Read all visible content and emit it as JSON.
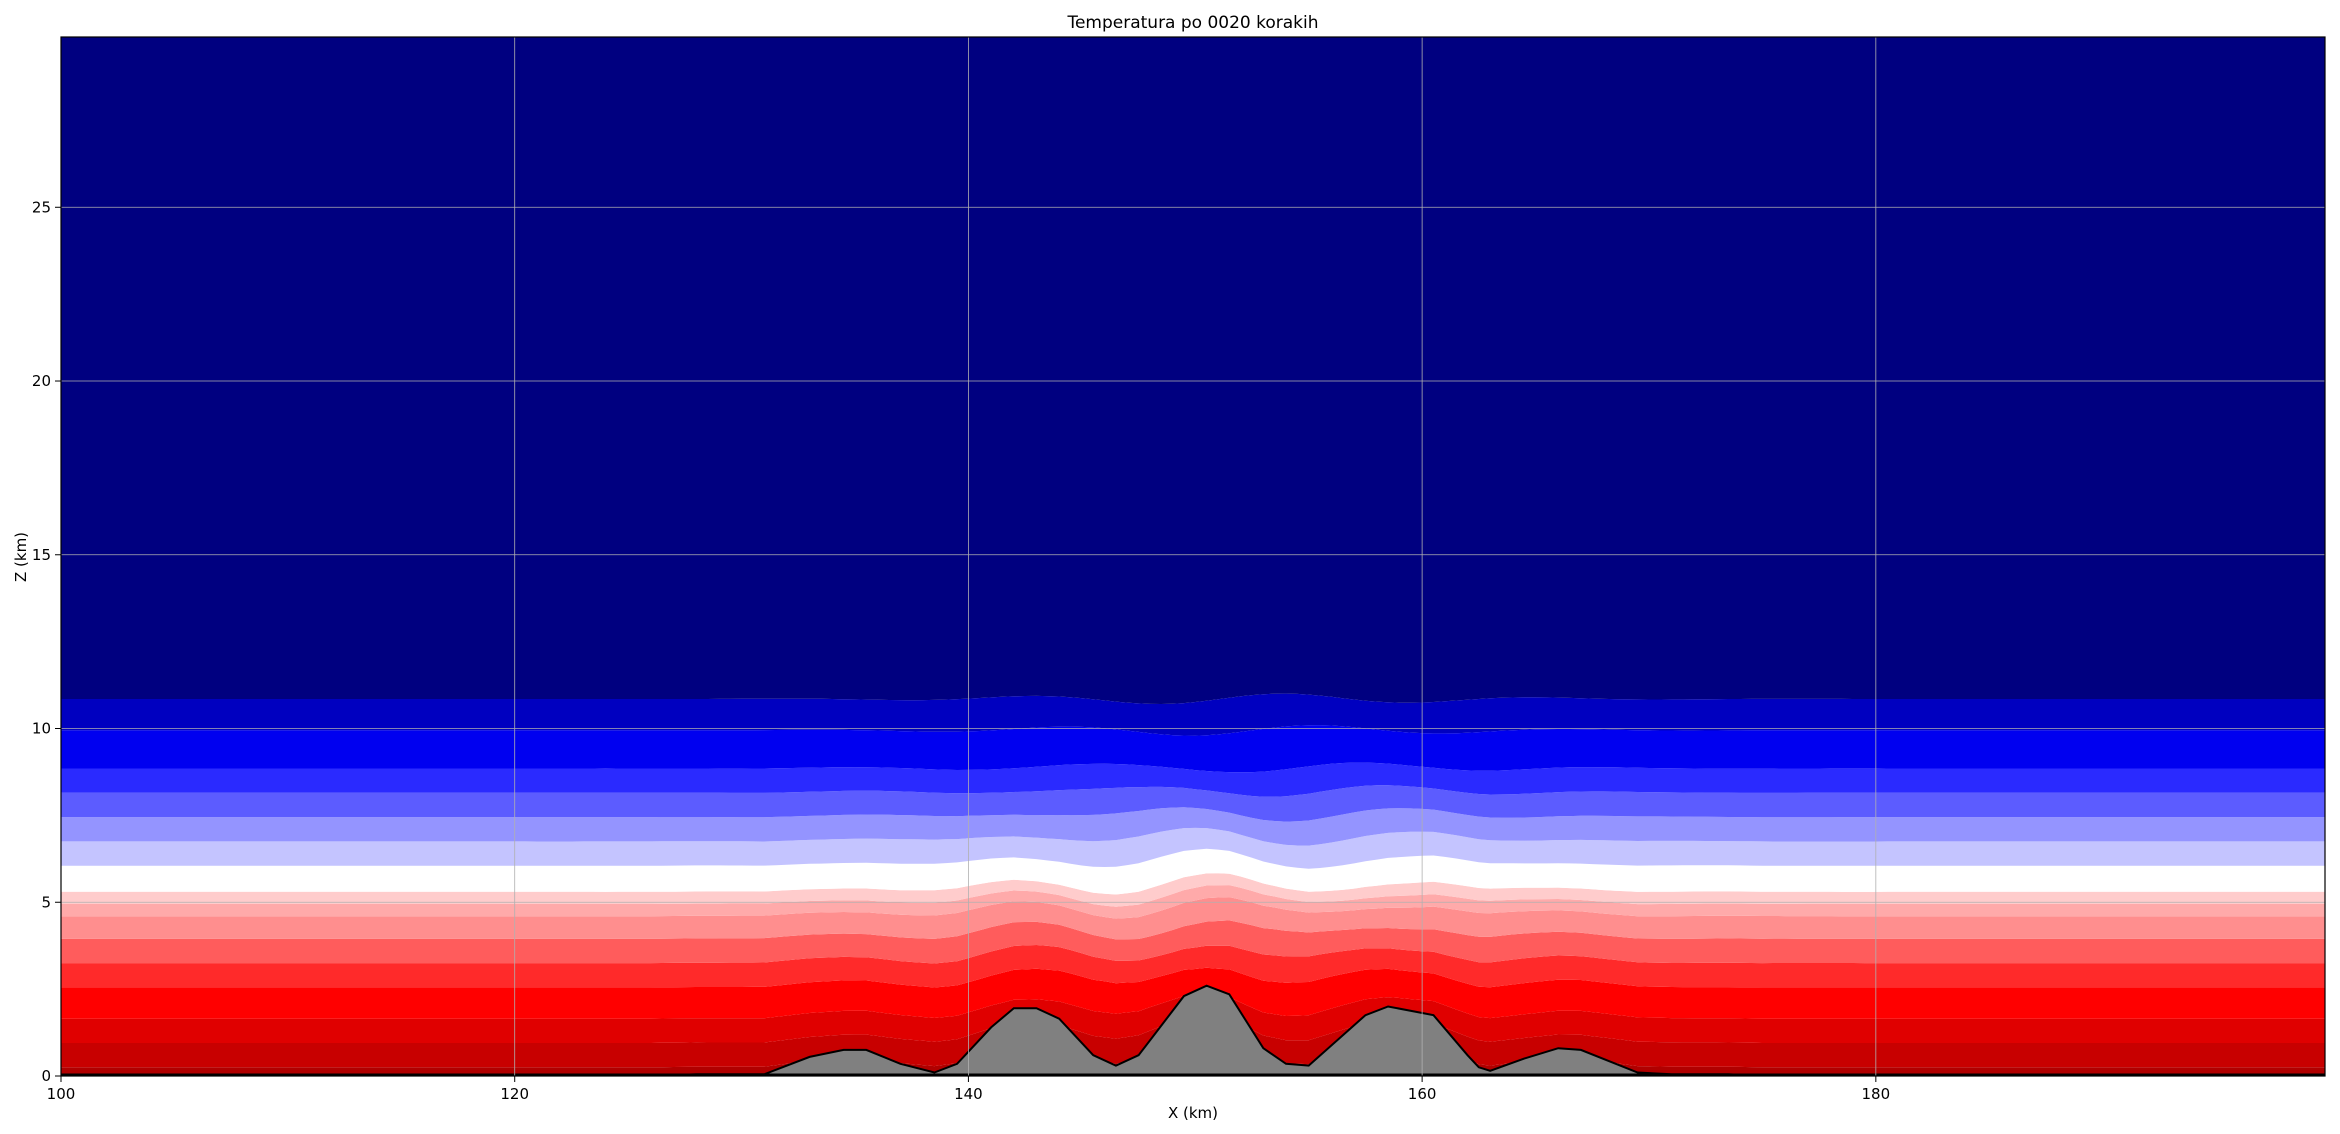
{
  "chart_data": {
    "type": "area",
    "title": "Temperatura po 0020 korakih",
    "xlabel": "X (km)",
    "ylabel": "Z (km)",
    "xlim": [
      100,
      199.8
    ],
    "ylim": [
      0,
      29.9
    ],
    "xticks": [
      100,
      120,
      140,
      160,
      180
    ],
    "yticks": [
      0,
      5,
      10,
      15,
      20,
      25
    ],
    "grid": true,
    "colormap": "seismic (reversed, warm near surface, cold aloft)",
    "colors": {
      "terrain_fill": "#808080",
      "terrain_outline": "#000000",
      "upper_air": "#000080",
      "grid": "#b0b0b0"
    },
    "temperature_layers": [
      {
        "top_km": 0.25,
        "color": "#b00000"
      },
      {
        "top_km": 0.95,
        "color": "#c80000"
      },
      {
        "top_km": 1.65,
        "color": "#e00000"
      },
      {
        "top_km": 2.55,
        "color": "#ff0000"
      },
      {
        "top_km": 3.25,
        "color": "#ff2a2a"
      },
      {
        "top_km": 3.95,
        "color": "#ff5c5c"
      },
      {
        "top_km": 4.6,
        "color": "#ff8e8e"
      },
      {
        "top_km": 4.95,
        "color": "#ffaaaa"
      },
      {
        "top_km": 5.3,
        "color": "#ffcccc"
      },
      {
        "top_km": 6.05,
        "color": "#ffffff"
      },
      {
        "top_km": 6.75,
        "color": "#c4c4ff"
      },
      {
        "top_km": 7.45,
        "color": "#9494ff"
      },
      {
        "top_km": 8.15,
        "color": "#5c5cff"
      },
      {
        "top_km": 8.85,
        "color": "#2a2aff"
      },
      {
        "top_km": 9.95,
        "color": "#0000f0"
      },
      {
        "top_km": 10.85,
        "color": "#0000c0"
      },
      {
        "top_km": 29.9,
        "color": "#000080"
      }
    ],
    "terrain": {
      "x": [
        100,
        126,
        128,
        131,
        133,
        134.5,
        135.5,
        137,
        138.5,
        139.5,
        141,
        142,
        143,
        144,
        145.5,
        146.5,
        147.5,
        149.5,
        150.5,
        151.5,
        153,
        154,
        155,
        157.5,
        158.5,
        160.5,
        162,
        162.5,
        163,
        164.5,
        166,
        167,
        169.5,
        171,
        173.5,
        175,
        199.8
      ],
      "z": [
        0,
        0,
        0.05,
        0.05,
        0.55,
        0.75,
        0.75,
        0.35,
        0.1,
        0.35,
        1.4,
        1.95,
        1.95,
        1.65,
        0.6,
        0.3,
        0.6,
        2.3,
        2.6,
        2.35,
        0.8,
        0.35,
        0.3,
        1.75,
        2.0,
        1.75,
        0.6,
        0.25,
        0.15,
        0.5,
        0.8,
        0.75,
        0.1,
        0.05,
        0.05,
        0,
        0
      ]
    }
  }
}
